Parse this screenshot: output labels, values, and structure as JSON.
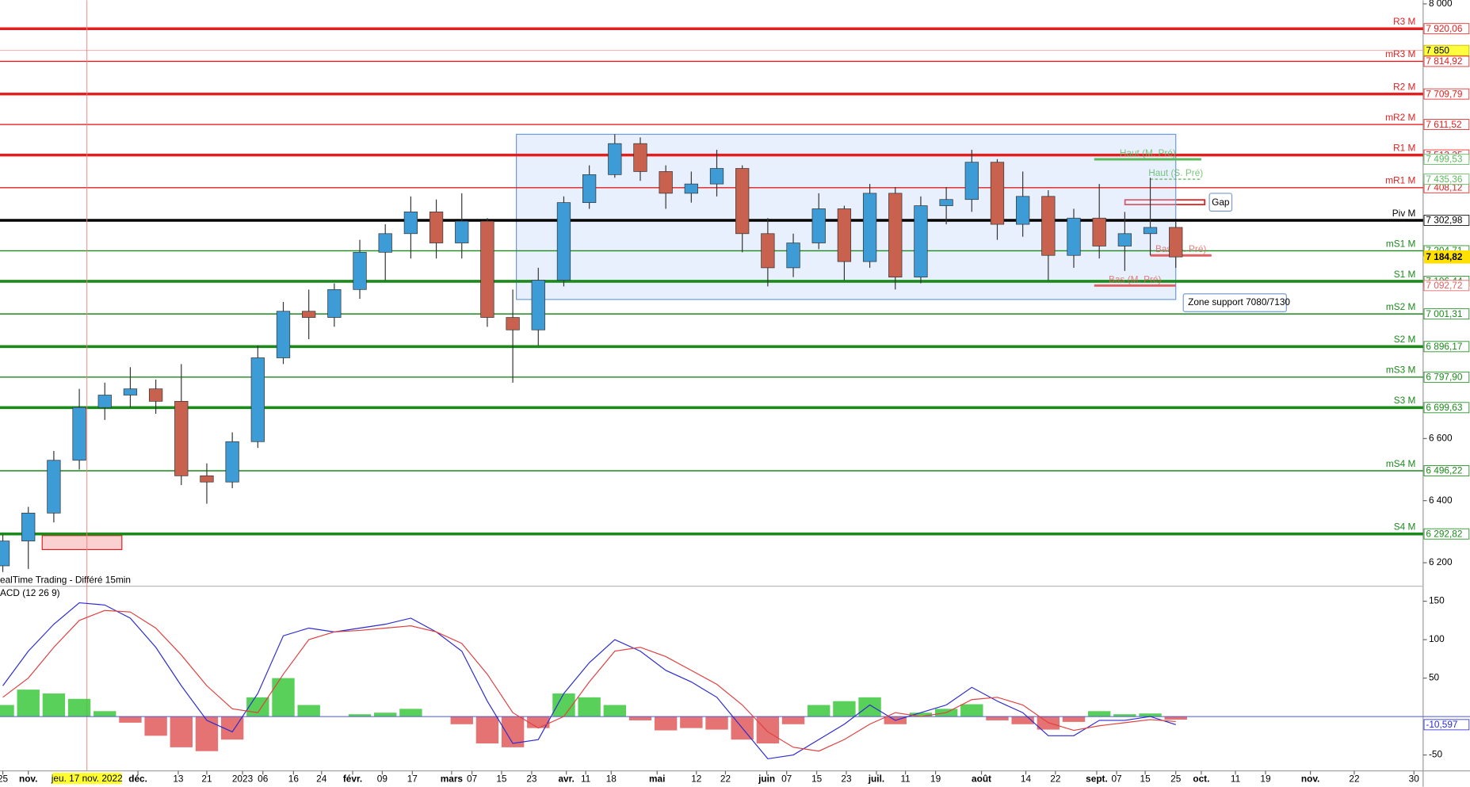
{
  "chart_data": [
    {
      "type": "candlestick",
      "source": "ealTime Trading - Différé 15min",
      "xlim": [
        -0.55,
        278.5
      ],
      "ylim": [
        6124.5,
        8012
      ],
      "yticks": [
        {
          "value": 8000,
          "label": "8 000"
        },
        {
          "value": 6600,
          "label": "6 600"
        },
        {
          "value": 6400,
          "label": "6 400"
        },
        {
          "value": 6200,
          "label": "6 200"
        }
      ],
      "xticks": [
        {
          "value": 0,
          "label": "25"
        },
        {
          "value": 5,
          "label": "nov."
        },
        {
          "value": 26.5,
          "label": "déc."
        },
        {
          "value": 34.4,
          "label": "13"
        },
        {
          "value": 40,
          "label": "21"
        },
        {
          "value": 47,
          "label": "2023"
        },
        {
          "value": 51,
          "label": "06"
        },
        {
          "value": 57,
          "label": "16"
        },
        {
          "value": 62.5,
          "label": "24"
        },
        {
          "value": 68.6,
          "label": "févr."
        },
        {
          "value": 74.4,
          "label": "09"
        },
        {
          "value": 80.3,
          "label": "17"
        },
        {
          "value": 88,
          "label": "mars"
        },
        {
          "value": 92,
          "label": "07"
        },
        {
          "value": 97.8,
          "label": "15"
        },
        {
          "value": 103.7,
          "label": "23"
        },
        {
          "value": 110.5,
          "label": "avr."
        },
        {
          "value": 114.3,
          "label": "11"
        },
        {
          "value": 119.3,
          "label": "18"
        },
        {
          "value": 128.3,
          "label": "mai"
        },
        {
          "value": 136,
          "label": "12"
        },
        {
          "value": 141.7,
          "label": "22"
        },
        {
          "value": 149.8,
          "label": "juin"
        },
        {
          "value": 153.7,
          "label": "07"
        },
        {
          "value": 159.6,
          "label": "15"
        },
        {
          "value": 165.4,
          "label": "23"
        },
        {
          "value": 171.3,
          "label": "juil."
        },
        {
          "value": 177,
          "label": "11"
        },
        {
          "value": 182.9,
          "label": "19"
        },
        {
          "value": 191.9,
          "label": "août"
        },
        {
          "value": 200.6,
          "label": "14"
        },
        {
          "value": 206.4,
          "label": "22"
        },
        {
          "value": 214.5,
          "label": "sept."
        },
        {
          "value": 218.4,
          "label": "07"
        },
        {
          "value": 224,
          "label": "15"
        },
        {
          "value": 230,
          "label": "25"
        },
        {
          "value": 235,
          "label": "oct."
        },
        {
          "value": 241.7,
          "label": "11"
        },
        {
          "value": 247.6,
          "label": "19"
        },
        {
          "value": 256.4,
          "label": "nov."
        },
        {
          "value": 265,
          "label": "22"
        },
        {
          "value": 276.7,
          "label": "30"
        }
      ],
      "cursor": {
        "x": 16.5,
        "label": "jeu. 17 nov. 2022"
      },
      "up_color": "#3d9bd6",
      "down_color": "#c8624e",
      "candles": {
        "x": [
          0,
          5,
          10,
          15,
          20,
          25,
          30,
          35,
          40,
          45,
          50,
          55,
          60,
          65,
          70,
          75,
          80,
          85,
          90,
          95,
          100,
          105,
          110,
          115,
          120,
          125,
          130,
          135,
          140,
          145,
          150,
          155,
          160,
          165,
          170,
          175,
          180,
          185,
          190,
          195,
          200,
          205,
          210,
          215,
          220,
          225,
          230
        ],
        "open": [
          6190,
          6270,
          6360,
          6530,
          6700,
          6740,
          6760,
          6720,
          6480,
          6460,
          6590,
          6860,
          7010,
          6990,
          7080,
          7200,
          7260,
          7330,
          7230,
          7300,
          6990,
          6950,
          7110,
          7360,
          7450,
          7550,
          7460,
          7390,
          7420,
          7470,
          7260,
          7150,
          7230,
          7340,
          7170,
          7390,
          7120,
          7350,
          7370,
          7490,
          7290,
          7380,
          7190,
          7310,
          7220,
          7260,
          7280
        ],
        "high": [
          6290,
          6380,
          6560,
          6760,
          6780,
          6830,
          6790,
          6840,
          6520,
          6620,
          6900,
          7040,
          7080,
          7100,
          7240,
          7290,
          7380,
          7370,
          7390,
          7310,
          7080,
          7150,
          7380,
          7480,
          7580,
          7570,
          7480,
          7460,
          7530,
          7480,
          7310,
          7260,
          7390,
          7350,
          7420,
          7410,
          7380,
          7410,
          7530,
          7500,
          7460,
          7400,
          7340,
          7420,
          7330,
          7440,
          7300
        ],
        "low": [
          6170,
          6180,
          6330,
          6500,
          6660,
          6700,
          6680,
          6450,
          6390,
          6440,
          6570,
          6840,
          6920,
          6960,
          7050,
          7110,
          7180,
          7180,
          7180,
          6960,
          6780,
          6900,
          7090,
          7340,
          7440,
          7430,
          7340,
          7360,
          7380,
          7200,
          7090,
          7120,
          7210,
          7110,
          7150,
          7080,
          7100,
          7290,
          7330,
          7240,
          7250,
          7110,
          7150,
          7180,
          7140,
          7190,
          7150
        ],
        "close": [
          6270,
          6360,
          6530,
          6700,
          6740,
          6760,
          6720,
          6480,
          6460,
          6590,
          6860,
          7010,
          6990,
          7080,
          7200,
          7260,
          7330,
          7230,
          7300,
          6990,
          6950,
          7110,
          7360,
          7450,
          7550,
          7460,
          7390,
          7420,
          7470,
          7260,
          7150,
          7230,
          7340,
          7170,
          7390,
          7120,
          7350,
          7370,
          7490,
          7290,
          7380,
          7190,
          7310,
          7220,
          7260,
          7280,
          7185
        ]
      },
      "levels": [
        {
          "name": "R3 M",
          "value": 7920.06,
          "label": "7 920,06",
          "color": "#e02020",
          "thick": true
        },
        {
          "name": "mR3 M",
          "value": 7814.92,
          "label": "7 814,92",
          "color": "#e02020",
          "thick": false
        },
        {
          "name": "R2 M",
          "value": 7709.79,
          "label": "7 709,79",
          "color": "#e02020",
          "thick": true
        },
        {
          "name": "mR2 M",
          "value": 7611.52,
          "label": "7 611,52",
          "color": "#e02020",
          "thick": false
        },
        {
          "name": "R1 M",
          "value": 7513.25,
          "label": "7 513,25",
          "color": "#e02020",
          "thick": true
        },
        {
          "name": "mR1 M",
          "value": 7408.12,
          "label": "7 408,12",
          "color": "#e02020",
          "thick": false
        },
        {
          "name": "Piv M",
          "value": 7302.98,
          "label": "7 302,98",
          "color": "#000000",
          "thick": true
        },
        {
          "name": "mS1 M",
          "value": 7204.71,
          "label": "7 204,71",
          "color": "#1a8a1a",
          "thick": false
        },
        {
          "name": "S1 M",
          "value": 7106.44,
          "label": "7 106,44",
          "color": "#1a8a1a",
          "thick": true
        },
        {
          "name": "mS2 M",
          "value": 7001.31,
          "label": "7 001,31",
          "color": "#1a8a1a",
          "thick": false
        },
        {
          "name": "S2 M",
          "value": 6896.17,
          "label": "6 896,17",
          "color": "#1a8a1a",
          "thick": true
        },
        {
          "name": "mS3 M",
          "value": 6797.9,
          "label": "6 797,90",
          "color": "#1a8a1a",
          "thick": false
        },
        {
          "name": "S3 M",
          "value": 6699.63,
          "label": "6 699,63",
          "color": "#1a8a1a",
          "thick": true
        },
        {
          "name": "mS4 M",
          "value": 6496.22,
          "label": "6 496,22",
          "color": "#1a8a1a",
          "thick": false
        },
        {
          "name": "S4 M",
          "value": 6292.82,
          "label": "6 292,82",
          "color": "#1a8a1a",
          "thick": true
        }
      ],
      "markers": [
        {
          "name": "Haut (M. Pré)",
          "value": 7499.53,
          "label": "7 499,53",
          "color": "#5cb85c",
          "x": [
            214,
            235
          ],
          "dashed": false
        },
        {
          "name": "Haut (S. Pré)",
          "value": 7435.36,
          "label": "7 435,36",
          "color": "#5cb85c",
          "x": [
            225,
            235
          ],
          "dashed": true
        },
        {
          "name": "Bas (S. Pré)",
          "value": 7190,
          "color": "#e06060",
          "x": [
            225,
            237
          ],
          "dashed": false
        },
        {
          "name": "Bas (M. Pré)",
          "value": 7092.72,
          "label": "7 092,72",
          "color": "#e06060",
          "x": [
            214,
            230
          ],
          "dashed": false
        }
      ],
      "alert": {
        "value": 7850,
        "label": "7 850"
      },
      "last": {
        "value": 7184.82,
        "label": "7 184,82"
      },
      "zone": {
        "x": [
          100.7,
          230
        ],
        "y": [
          7048,
          7580
        ],
        "label": "Zone support 7080/7130"
      },
      "gap": {
        "label": "Gap"
      }
    },
    {
      "type": "macd",
      "title": "ACD (12 26 9)",
      "xlim": [
        -0.55,
        278.5
      ],
      "ylim": [
        -70.7,
        165.9
      ],
      "yticks": [
        150,
        100,
        50,
        -50
      ],
      "x": [
        0,
        5,
        10,
        15,
        20,
        25,
        30,
        35,
        40,
        45,
        50,
        55,
        60,
        65,
        70,
        75,
        80,
        85,
        90,
        95,
        100,
        105,
        110,
        115,
        120,
        125,
        130,
        135,
        140,
        145,
        150,
        155,
        160,
        165,
        170,
        175,
        180,
        185,
        190,
        195,
        200,
        205,
        210,
        215,
        220,
        225,
        230
      ],
      "series": [
        {
          "color": "#2b2bd0",
          "values": [
            40,
            85,
            120,
            148,
            145,
            128,
            90,
            40,
            -5,
            -20,
            30,
            105,
            115,
            110,
            115,
            120,
            128,
            110,
            85,
            20,
            -35,
            -30,
            30,
            70,
            100,
            85,
            60,
            45,
            25,
            -15,
            -55,
            -50,
            -30,
            -10,
            15,
            -5,
            5,
            15,
            38,
            20,
            5,
            -25,
            -25,
            -5,
            -5,
            0,
            -10.597
          ],
          "last_label": "-10,597"
        },
        {
          "color": "#e04040",
          "values": [
            25,
            50,
            90,
            125,
            138,
            136,
            115,
            80,
            40,
            10,
            5,
            55,
            100,
            110,
            112,
            115,
            118,
            110,
            95,
            55,
            5,
            -15,
            0,
            45,
            85,
            90,
            78,
            60,
            42,
            15,
            -20,
            -40,
            -45,
            -30,
            -10,
            5,
            0,
            5,
            22,
            25,
            15,
            -8,
            -18,
            -12,
            -8,
            -4,
            -6.5
          ]
        }
      ],
      "histogram": {
        "up_color": "#3cc83c",
        "down_color": "#e05a5a",
        "values": [
          15,
          35,
          30,
          23,
          7,
          -8,
          -25,
          -40,
          -45,
          -30,
          25,
          50,
          15,
          0,
          3,
          5,
          10,
          0,
          -10,
          -35,
          -40,
          -15,
          30,
          25,
          15,
          -5,
          -18,
          -15,
          -17,
          -30,
          -35,
          -10,
          15,
          20,
          25,
          -10,
          5,
          10,
          16,
          -5,
          -10,
          -17,
          -7,
          7,
          3,
          4,
          -4.1
        ]
      }
    }
  ]
}
